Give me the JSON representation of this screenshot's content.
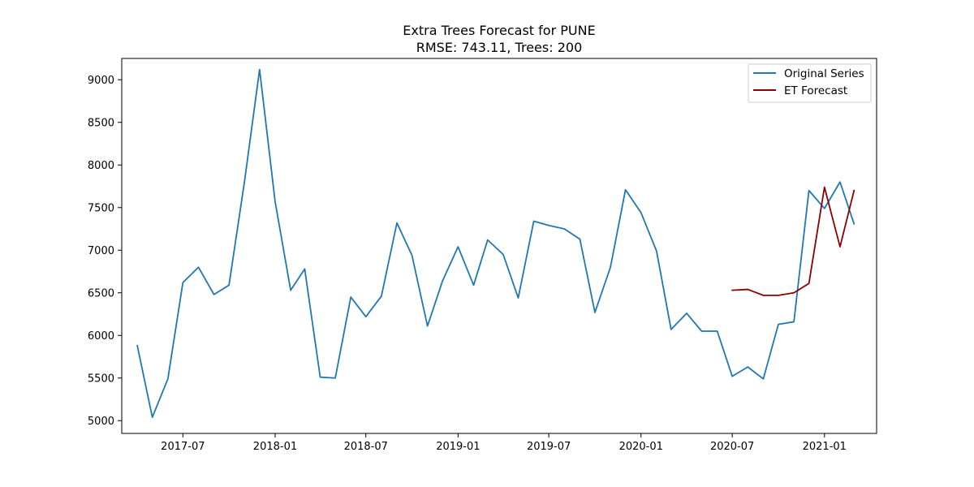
{
  "chart_data": {
    "type": "line",
    "title": "Extra Trees Forecast for PUNE",
    "subtitle": "RMSE: 743.11, Trees: 200",
    "xlabel": "",
    "ylabel": "",
    "xlim": [
      "2017-03-01",
      "2021-04-15"
    ],
    "ylim": [
      4850,
      9250
    ],
    "yticks": [
      5000,
      5500,
      6000,
      6500,
      7000,
      7500,
      8000,
      8500,
      9000
    ],
    "xticks": [
      "2017-07",
      "2018-01",
      "2018-07",
      "2019-01",
      "2019-07",
      "2020-01",
      "2020-07",
      "2021-01"
    ],
    "grid": false,
    "legend_position": "top-right",
    "series": [
      {
        "name": "Original Series",
        "color": "#1f77b4",
        "x": [
          "2017-04-01",
          "2017-05-01",
          "2017-06-01",
          "2017-07-01",
          "2017-08-01",
          "2017-09-01",
          "2017-10-01",
          "2017-11-01",
          "2017-12-01",
          "2018-01-01",
          "2018-02-01",
          "2018-03-01",
          "2018-04-01",
          "2018-05-01",
          "2018-06-01",
          "2018-07-01",
          "2018-08-01",
          "2018-09-01",
          "2018-10-01",
          "2018-11-01",
          "2018-12-01",
          "2019-01-01",
          "2019-02-01",
          "2019-03-01",
          "2019-04-01",
          "2019-05-01",
          "2019-06-01",
          "2019-07-01",
          "2019-08-01",
          "2019-09-01",
          "2019-10-01",
          "2019-11-01",
          "2019-12-01",
          "2020-01-01",
          "2020-02-01",
          "2020-03-01",
          "2020-04-01",
          "2020-05-01",
          "2020-06-01",
          "2020-07-01",
          "2020-08-01",
          "2020-09-01",
          "2020-10-01",
          "2020-11-01",
          "2020-12-01",
          "2021-01-01",
          "2021-02-01",
          "2021-03-01"
        ],
        "y": [
          5880,
          5040,
          5490,
          6620,
          6800,
          6480,
          6590,
          7810,
          9120,
          7570,
          6530,
          6780,
          5510,
          5500,
          6450,
          6220,
          6460,
          7320,
          6940,
          6110,
          6640,
          7040,
          6590,
          7120,
          6950,
          6440,
          7340,
          7290,
          7250,
          7130,
          6270,
          6800,
          7710,
          7440,
          6990,
          6070,
          6260,
          6050,
          6050,
          5520,
          5630,
          5490,
          6130,
          6160,
          7700,
          7490,
          7800,
          7310
        ]
      },
      {
        "name": "ET Forecast",
        "color": "#8b0000",
        "x": [
          "2020-07-01",
          "2020-08-01",
          "2020-09-01",
          "2020-10-01",
          "2020-11-01",
          "2020-12-01",
          "2021-01-01",
          "2021-02-01",
          "2021-03-01"
        ],
        "y": [
          6530,
          6540,
          6470,
          6470,
          6500,
          6610,
          7740,
          7040,
          7700
        ]
      }
    ]
  }
}
